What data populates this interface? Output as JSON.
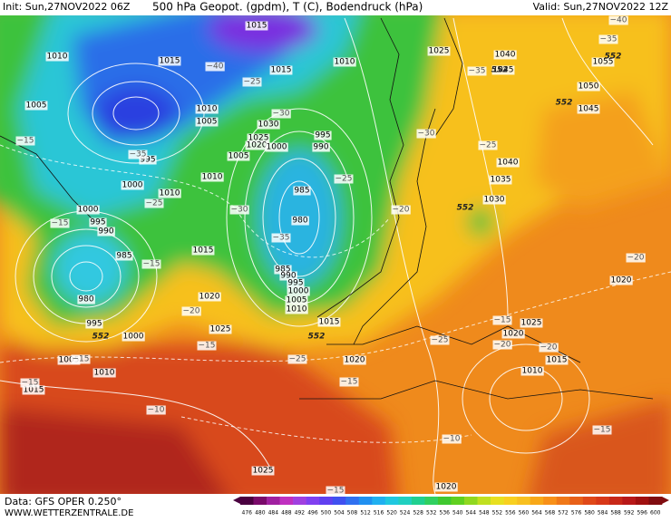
{
  "header": {
    "init": "Init: Sun,27NOV2022 06Z",
    "title": "500 hPa Geopot. (gpdm), T (C), Bodendruck (hPa)",
    "valid": "Valid: Sun,27NOV2022 12Z"
  },
  "footer": {
    "data": "Data: GFS OPER 0.250°",
    "site": "WWW.WETTERZENTRALE.DE"
  },
  "legend": {
    "ticks": [
      476,
      480,
      484,
      488,
      492,
      496,
      500,
      504,
      508,
      512,
      516,
      520,
      524,
      528,
      532,
      536,
      540,
      544,
      548,
      552,
      556,
      560,
      564,
      568,
      572,
      576,
      580,
      584,
      588,
      592,
      596,
      600
    ],
    "colors": [
      "#4a0040",
      "#7a0a6a",
      "#a020a0",
      "#c030c0",
      "#a040e0",
      "#8040f0",
      "#6040f0",
      "#4050f0",
      "#3070f0",
      "#2090f0",
      "#20b0f0",
      "#20c8e0",
      "#20d0c0",
      "#20d090",
      "#30d060",
      "#40c830",
      "#60d020",
      "#90d820",
      "#c0e020",
      "#e8e020",
      "#f8d020",
      "#f8c020",
      "#f8a818",
      "#f89018",
      "#f07818",
      "#e86018",
      "#e04818",
      "#d83818",
      "#c82818",
      "#b81818",
      "#a01010",
      "#800c10"
    ]
  },
  "map": {
    "pressure_labels": [
      "1015",
      "1010",
      "1015",
      "1010",
      "1015",
      "1025",
      "1040",
      "1045",
      "1055",
      "1050",
      "1045",
      "1005",
      "1010",
      "1005",
      "1030",
      "1025",
      "1020",
      "1000",
      "995",
      "990",
      "995",
      "1005",
      "1010",
      "1000",
      "1010",
      "985",
      "980",
      "1000",
      "995",
      "990",
      "985",
      "1015",
      "1040",
      "1035",
      "1030",
      "985",
      "990",
      "995",
      "1000",
      "1005",
      "1010",
      "980",
      "1020",
      "1015",
      "995",
      "1000",
      "1025",
      "1005",
      "1010",
      "1015",
      "1020",
      "1025",
      "1020",
      "1015",
      "1010",
      "1020",
      "1025",
      "1020"
    ],
    "temperature_labels": [
      "−40",
      "−35",
      "−40",
      "−35",
      "−25",
      "−30",
      "−15",
      "−35",
      "−25",
      "−30",
      "−25",
      "−25",
      "−30",
      "−15",
      "−35",
      "−20",
      "−15",
      "−20",
      "−20",
      "−15",
      "−15",
      "−20",
      "−25",
      "−15",
      "−25",
      "−15",
      "−15",
      "−20",
      "−10",
      "−10",
      "−15",
      "−15"
    ],
    "geopotential_labels": [
      "552",
      "552",
      "552",
      "552",
      "552",
      "552"
    ]
  }
}
